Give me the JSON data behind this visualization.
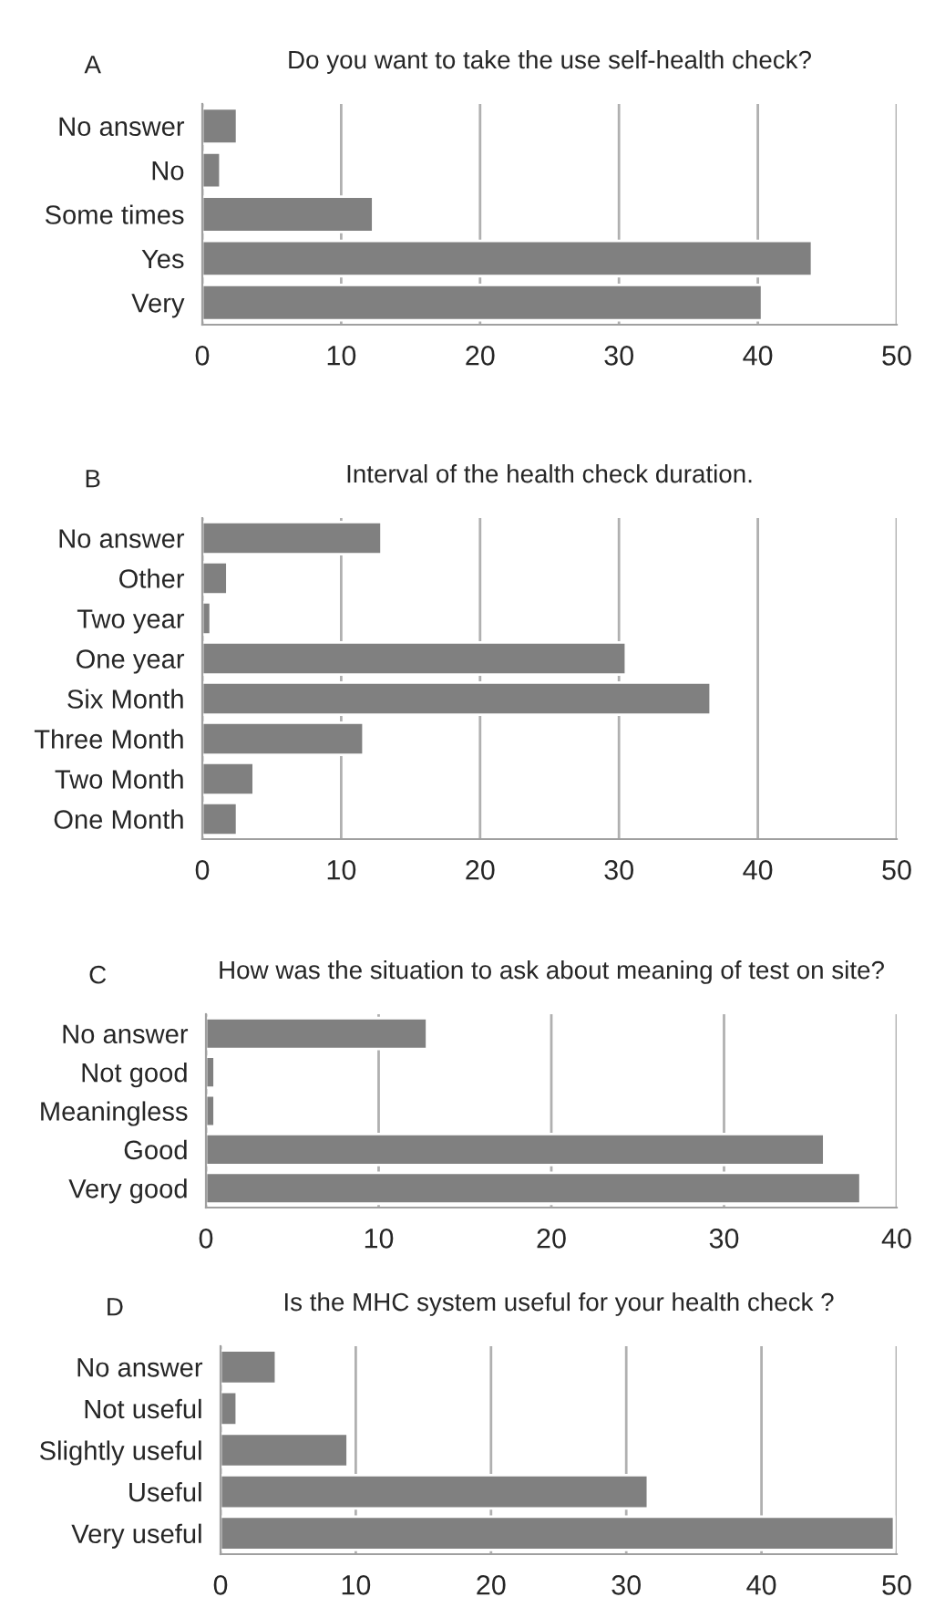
{
  "chart_data": [
    {
      "type": "bar",
      "orientation": "horizontal",
      "title": "Do you want to take the use self-health check?",
      "annotations": [
        "A"
      ],
      "categories": [
        "No answer",
        "No",
        "Some times",
        "Yes",
        "Very"
      ],
      "values": [
        2.5,
        1.3,
        12.3,
        43.9,
        40.3
      ],
      "color": "#808080",
      "xlim": [
        0,
        50
      ],
      "xticks": [
        0,
        10,
        20,
        30,
        40,
        50
      ],
      "grid": "x"
    },
    {
      "type": "bar",
      "orientation": "horizontal",
      "title": "Interval of the health check duration.",
      "annotations": [
        "B"
      ],
      "categories": [
        "No answer",
        "Other",
        "Two year",
        "One year",
        "Six Month",
        "Three Month",
        "Two Month",
        "One Month"
      ],
      "values": [
        12.9,
        1.8,
        0.6,
        30.5,
        36.6,
        11.6,
        3.7,
        2.5
      ],
      "color": "#808080",
      "xlim": [
        0,
        50
      ],
      "xticks": [
        0,
        10,
        20,
        30,
        40,
        50
      ],
      "grid": "x"
    },
    {
      "type": "bar",
      "orientation": "horizontal",
      "title": "How was the situation to ask about meaning of test on site?",
      "annotations": [
        "C"
      ],
      "categories": [
        "No answer",
        "Not good",
        "Meaningless",
        "Good",
        "Very good"
      ],
      "values": [
        12.8,
        0.5,
        0.5,
        35.8,
        37.9
      ],
      "color": "#808080",
      "xlim": [
        0,
        40
      ],
      "xticks": [
        0,
        10,
        20,
        30,
        40
      ],
      "grid": "x"
    },
    {
      "type": "bar",
      "orientation": "horizontal",
      "title": "Is the MHC system useful for your health check ?",
      "annotations": [
        "D"
      ],
      "categories": [
        "No answer",
        "Not useful",
        "Slightly useful",
        "Useful",
        "Very useful"
      ],
      "values": [
        4.1,
        1.2,
        9.4,
        31.6,
        49.8
      ],
      "color": "#808080",
      "xlim": [
        0,
        50
      ],
      "xticks": [
        0,
        10,
        20,
        30,
        40,
        50
      ],
      "grid": "x"
    }
  ]
}
